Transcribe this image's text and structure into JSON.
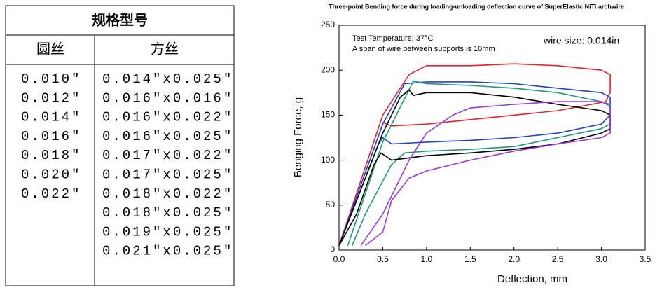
{
  "table": {
    "title": "规格型号",
    "headers": [
      "圆丝",
      "方丝"
    ],
    "round": [
      "0.010\"",
      "0.012\"",
      "0.014\"",
      "0.016\"",
      "0.018\"",
      "0.020\"",
      "0.022\""
    ],
    "square": [
      "0.014\"x0.025\"",
      "0.016\"x0.016\"",
      "0.016\"x0.022\"",
      "0.016\"x0.025\"",
      "0.017\"x0.022\"",
      "0.017\"x0.025\"",
      "0.018\"x0.022\"",
      "0.018\"x0.025\"",
      "0.019\"x0.025\"",
      "0.021\"x0.025\""
    ]
  },
  "chart_data": {
    "type": "line",
    "title": "Three-point Bending force during loading-unloading deflection curve of  SuperElastic NiTi archwire",
    "x_label": "Deflection,  mm",
    "y_label": "Benging Force,  g",
    "annotations": [
      "Test Temperature: 37°C",
      "A span of wire between supports is 10mm",
      "wire size: 0.014in"
    ],
    "xlim": [
      0,
      3.5
    ],
    "xticks": [
      {
        "value": 0,
        "label": "0.0"
      },
      0.5,
      {
        "value": 1,
        "label": "1.0"
      },
      1.5,
      {
        "value": 2,
        "label": "2.0"
      },
      2.5,
      {
        "value": 3,
        "label": "3.0"
      },
      3.5
    ],
    "ylim": [
      0,
      250
    ],
    "yticks": [
      0,
      50,
      100,
      150,
      200,
      250
    ],
    "series": [
      {
        "color": "#e8212b",
        "x": [
          0,
          0.5,
          0.8,
          1.0,
          1.5,
          2.0,
          2.5,
          3.0,
          3.1,
          3.1,
          3.05,
          2.5,
          2.0,
          1.5,
          1.0,
          0.6,
          0.5
        ],
        "values": [
          5,
          150,
          195,
          205,
          205,
          207,
          205,
          200,
          195,
          175,
          165,
          155,
          150,
          145,
          140,
          138,
          142
        ]
      },
      {
        "color": "#2040d0",
        "x": [
          0,
          0.5,
          0.75,
          1.0,
          1.5,
          2.0,
          2.5,
          3.0,
          3.1,
          3.1,
          3.0,
          2.5,
          2.0,
          1.5,
          1.0,
          0.6,
          0.5,
          0.45,
          0.3,
          0
        ],
        "values": [
          5,
          140,
          185,
          187,
          187,
          185,
          180,
          175,
          170,
          150,
          140,
          130,
          125,
          122,
          120,
          118,
          125,
          118,
          80,
          5
        ]
      },
      {
        "color": "#1f9a7a",
        "x": [
          0.1,
          0.5,
          0.85,
          1.0,
          1.5,
          2.0,
          2.5,
          3.0,
          3.1,
          3.1,
          3.0,
          2.5,
          2.0,
          1.5,
          1.0,
          0.75,
          0.6,
          0.3,
          0.15
        ],
        "values": [
          5,
          120,
          188,
          185,
          183,
          180,
          175,
          165,
          162,
          140,
          135,
          125,
          115,
          112,
          110,
          108,
          95,
          40,
          5
        ]
      },
      {
        "color": "#000000",
        "x": [
          0,
          0.5,
          0.7,
          0.8,
          0.85,
          1.0,
          1.5,
          2.0,
          2.5,
          3.0,
          3.1,
          3.1,
          3.0,
          2.5,
          2.0,
          1.5,
          1.0,
          0.6,
          0.48,
          0.4,
          0.2,
          0
        ],
        "values": [
          5,
          130,
          170,
          178,
          172,
          175,
          175,
          170,
          162,
          155,
          150,
          135,
          130,
          118,
          112,
          108,
          105,
          100,
          108,
          95,
          40,
          5
        ]
      },
      {
        "color": "#9a3ad8",
        "x": [
          0.25,
          0.5,
          0.8,
          1.0,
          1.3,
          1.5,
          2.0,
          2.5,
          3.0,
          3.1,
          3.1,
          3.0,
          2.5,
          2.0,
          1.5,
          1.0,
          0.8,
          0.6,
          0.5,
          0.3
        ],
        "values": [
          5,
          40,
          100,
          130,
          150,
          158,
          162,
          165,
          165,
          160,
          130,
          125,
          118,
          110,
          100,
          88,
          80,
          55,
          20,
          5
        ]
      }
    ]
  }
}
